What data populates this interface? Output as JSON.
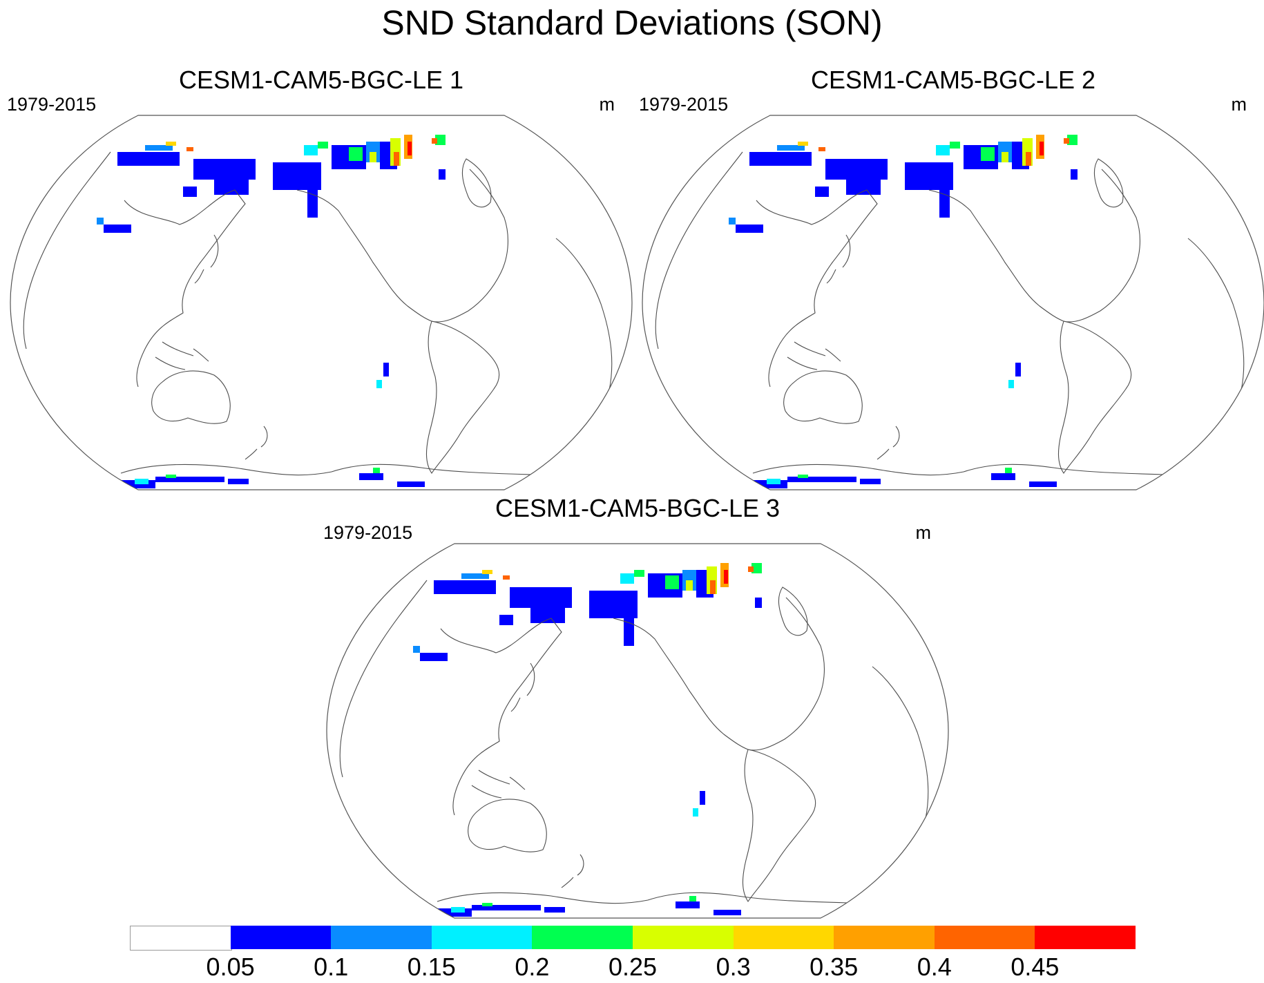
{
  "figure": {
    "title": "SND Standard Deviations (SON)"
  },
  "panels": [
    {
      "title": "CESM1-CAM5-BGC-LE 1",
      "period": "1979-2015",
      "units": "m"
    },
    {
      "title": "CESM1-CAM5-BGC-LE 2",
      "period": "1979-2015",
      "units": "m"
    },
    {
      "title": "CESM1-CAM5-BGC-LE 3",
      "period": "1979-2015",
      "units": "m"
    }
  ],
  "chart_data": {
    "type": "heatmap",
    "title": "SND Standard Deviations (SON)",
    "projection": "Robinson, Pacific-centered",
    "variable": "SND standard deviation",
    "units": "m",
    "season": "SON",
    "period": "1979-2015",
    "members": [
      "CESM1-CAM5-BGC-LE 1",
      "CESM1-CAM5-BGC-LE 2",
      "CESM1-CAM5-BGC-LE 3"
    ],
    "colorbar": {
      "levels": [
        0.05,
        0.1,
        0.15,
        0.2,
        0.25,
        0.3,
        0.35,
        0.4,
        0.45
      ],
      "labels": [
        "0.05",
        "0.1",
        "0.15",
        "0.2",
        "0.25",
        "0.3",
        "0.35",
        "0.4",
        "0.45"
      ],
      "colors": [
        "#ffffff",
        "#0000ff",
        "#0a8cff",
        "#00f0ff",
        "#00ff50",
        "#d8ff00",
        "#ffd700",
        "#ffa000",
        "#ff6400",
        "#ff0000"
      ]
    }
  }
}
